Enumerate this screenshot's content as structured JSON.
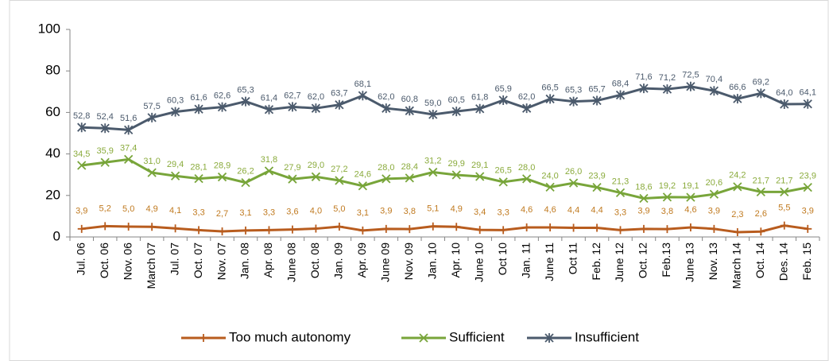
{
  "chart_data": {
    "type": "line",
    "categories": [
      "Jul. 06",
      "Oct. 06",
      "Nov. 06",
      "March 07",
      "Jul. 07",
      "Oct. 07",
      "Nov. 07",
      "Jan. 08",
      "Apr. 08",
      "June 08",
      "Oct. 08",
      "Jan. 09",
      "Apr. 09",
      "June 09",
      "Nov. 09",
      "Jan. 10",
      "Apr. 10",
      "June 10",
      "Oct 10",
      "Jan. 11",
      "June 11",
      "Oct 11",
      "Feb. 12",
      "June 12",
      "Oct. 12",
      "Feb.13",
      "June 13",
      "Nov. 13",
      "March 14",
      "Oct. 14",
      "Des. 14",
      "Feb. 15"
    ],
    "series": [
      {
        "name": "Too much autonomy",
        "color": "#b85c1e",
        "marker": "plus",
        "values": [
          3.9,
          5.2,
          5.0,
          4.9,
          4.1,
          3.3,
          2.7,
          3.1,
          3.3,
          3.6,
          4.0,
          5.0,
          3.1,
          3.9,
          3.8,
          5.1,
          4.9,
          3.4,
          3.3,
          4.6,
          4.6,
          4.4,
          4.4,
          3.3,
          3.9,
          3.8,
          4.6,
          3.9,
          2.3,
          2.6,
          5.5,
          3.9
        ],
        "value_labels": [
          "3,9",
          "5,2",
          "5,0",
          "4,9",
          "4,1",
          "3,3",
          "2,7",
          "3,1",
          "3,3",
          "3,6",
          "4,0",
          "5,0",
          "3,1",
          "3,9",
          "3,8",
          "5,1",
          "4,9",
          "3,4",
          "3,3",
          "4,6",
          "4,6",
          "4,4",
          "4,4",
          "3,3",
          "3,9",
          "3,8",
          "4,6",
          "3,9",
          "2,3",
          "2,6",
          "5,5",
          "3,9"
        ]
      },
      {
        "name": "Sufficient",
        "color": "#78a53a",
        "marker": "x",
        "values": [
          34.5,
          35.9,
          37.4,
          31.0,
          29.4,
          28.1,
          28.9,
          26.2,
          31.8,
          27.9,
          29.0,
          27.2,
          24.6,
          28.0,
          28.4,
          31.2,
          29.9,
          29.1,
          26.5,
          28.0,
          24.0,
          26.0,
          23.9,
          21.3,
          18.6,
          19.2,
          19.1,
          20.6,
          24.2,
          21.7,
          21.7,
          23.9
        ],
        "value_labels": [
          "34,5",
          "35,9",
          "37,4",
          "31,0",
          "29,4",
          "28,1",
          "28,9",
          "26,2",
          "31,8",
          "27,9",
          "29,0",
          "27,2",
          "24,6",
          "28,0",
          "28,4",
          "31,2",
          "29,9",
          "29,1",
          "26,5",
          "28,0",
          "24,0",
          "26,0",
          "23,9",
          "21,3",
          "18,6",
          "19,2",
          "19,1",
          "20,6",
          "24,2",
          "21,7",
          "21,7",
          "23,9"
        ]
      },
      {
        "name": "Insufficient",
        "color": "#4b5a6c",
        "marker": "star",
        "values": [
          52.8,
          52.4,
          51.6,
          57.5,
          60.3,
          61.6,
          62.6,
          65.3,
          61.4,
          62.7,
          62.0,
          63.7,
          68.1,
          62.0,
          60.8,
          59.0,
          60.5,
          61.8,
          65.9,
          62.0,
          66.5,
          65.3,
          65.7,
          68.4,
          71.6,
          71.2,
          72.5,
          70.4,
          66.6,
          69.2,
          64.0,
          64.1
        ],
        "value_labels": [
          "52,8",
          "52,4",
          "51,6",
          "57,5",
          "60,3",
          "61,6",
          "62,6",
          "65,3",
          "61,4",
          "62,7",
          "62,0",
          "63,7",
          "68,1",
          "62,0",
          "60,8",
          "59,0",
          "60,5",
          "61,8",
          "65,9",
          "62,0",
          "66,5",
          "65,3",
          "65,7",
          "68,4",
          "71,6",
          "71,2",
          "72,5",
          "70,4",
          "66,6",
          "69,2",
          "64,0",
          "64,1"
        ]
      }
    ],
    "ylim": [
      0,
      100
    ],
    "yticks": [
      0,
      20,
      40,
      60,
      80,
      100
    ],
    "legend": "bottom"
  }
}
